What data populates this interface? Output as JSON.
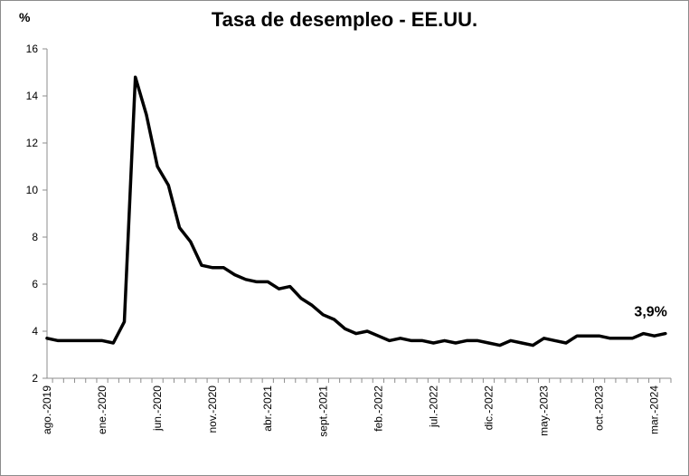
{
  "chart_data": {
    "type": "line",
    "title": "Tasa de desempleo - EE.UU.",
    "ylabel": "%",
    "xlabel": "",
    "ylim": [
      2,
      16
    ],
    "yticks": [
      "2",
      "4",
      "6",
      "8",
      "10",
      "12",
      "14",
      "16"
    ],
    "grid": false,
    "legend": "none",
    "line_color": "#000000",
    "x_tick_labels": [
      "ago.-2019",
      "ene.-2020",
      "jun.-2020",
      "nov.-2020",
      "abr.-2021",
      "sept.-2021",
      "feb.-2022",
      "jul.-2022",
      "dic.-2022",
      "may.-2023",
      "oct.-2023",
      "mar.-2024"
    ],
    "x_tick_index": [
      0,
      5,
      10,
      15,
      20,
      25,
      30,
      35,
      40,
      45,
      50,
      55
    ],
    "series": [
      {
        "name": "",
        "values": [
          3.7,
          3.6,
          3.6,
          3.6,
          3.6,
          3.6,
          3.5,
          4.4,
          14.8,
          13.2,
          11.0,
          10.2,
          8.4,
          7.8,
          6.8,
          6.7,
          6.7,
          6.4,
          6.2,
          6.1,
          6.1,
          5.8,
          5.9,
          5.4,
          5.1,
          4.7,
          4.5,
          4.1,
          3.9,
          4.0,
          3.8,
          3.6,
          3.7,
          3.6,
          3.6,
          3.5,
          3.6,
          3.5,
          3.6,
          3.6,
          3.5,
          3.4,
          3.6,
          3.5,
          3.4,
          3.7,
          3.6,
          3.5,
          3.8,
          3.8,
          3.8,
          3.7,
          3.7,
          3.7,
          3.9,
          3.8,
          3.9
        ]
      }
    ],
    "annotation": "3,9%"
  }
}
